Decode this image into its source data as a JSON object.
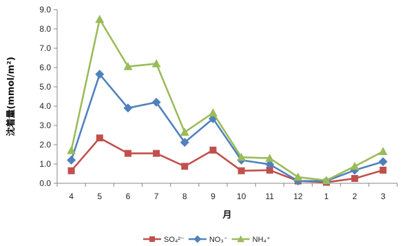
{
  "chart_data": {
    "type": "line",
    "title": "",
    "xlabel": "月",
    "ylabel": "沈着量(mmol/m²)",
    "categories": [
      "4",
      "5",
      "6",
      "7",
      "8",
      "9",
      "10",
      "11",
      "12",
      "1",
      "2",
      "3"
    ],
    "ylim": [
      0,
      9
    ],
    "yticks": [
      "0.0",
      "1.0",
      "2.0",
      "3.0",
      "4.0",
      "5.0",
      "6.0",
      "7.0",
      "8.0",
      "9.0"
    ],
    "grid": false,
    "legend": "bottom",
    "series": [
      {
        "name": "SO₄²⁻",
        "color": "#c0504d",
        "marker": "square",
        "values": [
          0.65,
          2.35,
          1.55,
          1.55,
          0.88,
          1.72,
          0.65,
          0.68,
          0.12,
          0.05,
          0.25,
          0.68
        ]
      },
      {
        "name": "NO₃⁻",
        "color": "#4f81bd",
        "marker": "diamond",
        "values": [
          1.2,
          5.65,
          3.9,
          4.2,
          2.12,
          3.35,
          1.2,
          0.98,
          0.12,
          0.12,
          0.68,
          1.12
        ]
      },
      {
        "name": "NH₄⁺",
        "color": "#9bbb59",
        "marker": "triangle",
        "values": [
          1.7,
          8.5,
          6.05,
          6.2,
          2.65,
          3.65,
          1.35,
          1.3,
          0.32,
          0.15,
          0.88,
          1.65
        ]
      }
    ]
  }
}
